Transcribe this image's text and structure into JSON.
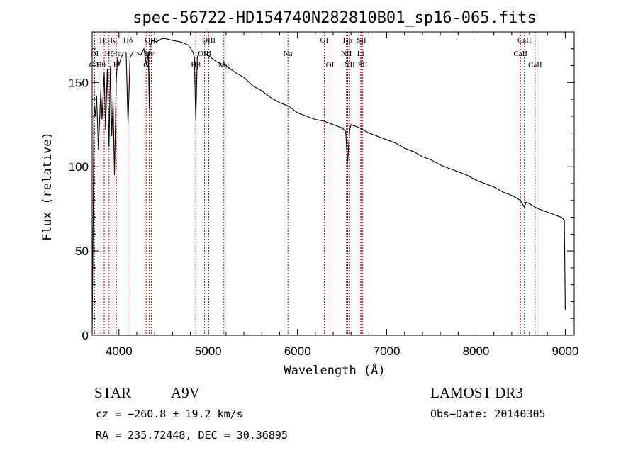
{
  "chart_data": {
    "type": "line",
    "title": "spec-56722-HD154740N282810B01_sp16-065.fits",
    "xlabel": "Wavelength (Å)",
    "ylabel": "Flux (relative)",
    "xlim": [
      3700,
      9100
    ],
    "ylim": [
      0,
      180
    ],
    "xticks": [
      4000,
      5000,
      6000,
      7000,
      8000,
      9000
    ],
    "yticks": [
      0,
      50,
      100,
      150
    ],
    "grid": false,
    "series": [
      {
        "name": "spectrum",
        "x": [
          3700,
          3710,
          3720,
          3735,
          3750,
          3770,
          3798,
          3810,
          3835,
          3850,
          3870,
          3889,
          3905,
          3920,
          3934,
          3950,
          3969,
          3985,
          4000,
          4020,
          4050,
          4080,
          4102,
          4125,
          4160,
          4200,
          4240,
          4280,
          4310,
          4330,
          4340,
          4350,
          4380,
          4420,
          4480,
          4520,
          4600,
          4700,
          4780,
          4830,
          4845,
          4861,
          4878,
          4900,
          4950,
          5000,
          5100,
          5200,
          5300,
          5400,
          5500,
          5600,
          5700,
          5800,
          5900,
          6000,
          6100,
          6200,
          6300,
          6400,
          6500,
          6540,
          6563,
          6585,
          6600,
          6700,
          6800,
          6900,
          7000,
          7100,
          7200,
          7300,
          7400,
          7500,
          7600,
          7700,
          7800,
          7900,
          8000,
          8100,
          8200,
          8300,
          8400,
          8500,
          8542,
          8560,
          8600,
          8662,
          8700,
          8800,
          8900,
          8960,
          8990,
          9000
        ],
        "y": [
          2,
          60,
          138,
          130,
          142,
          110,
          146,
          128,
          156,
          122,
          158,
          112,
          160,
          118,
          140,
          95,
          150,
          165,
          160,
          164,
          168,
          168,
          125,
          165,
          168,
          168,
          166,
          170,
          160,
          168,
          135,
          172,
          175,
          174,
          176,
          176,
          175,
          174,
          172,
          168,
          165,
          127,
          165,
          168,
          168,
          166,
          162,
          160,
          156,
          153,
          148,
          145,
          141,
          138,
          136,
          132,
          130,
          128,
          127,
          125,
          123,
          121,
          103,
          122,
          125,
          123,
          120,
          118,
          116,
          114,
          111,
          109,
          106,
          104,
          101,
          99,
          97,
          95,
          92,
          90,
          88,
          85,
          83,
          80,
          76,
          79,
          78,
          76,
          75,
          73,
          71,
          70,
          68,
          15
        ]
      }
    ],
    "line_marks": [
      {
        "label": "OII",
        "x": 3727,
        "row": 2
      },
      {
        "label": "H9",
        "x": 3835,
        "row": 0
      },
      {
        "label": "OI",
        "x": 3727,
        "row": 1
      },
      {
        "label": "Hε",
        "x": 3970,
        "row": 1
      },
      {
        "label": "Hζ",
        "x": 3889,
        "row": 1
      },
      {
        "label": "Hθ",
        "x": 3798,
        "row": 2
      },
      {
        "label": "K",
        "x": 3934,
        "row": 0
      },
      {
        "label": "H",
        "x": 3968,
        "row": 2
      },
      {
        "label": "Hδ",
        "x": 4102,
        "row": 0
      },
      {
        "label": "G",
        "x": 4305,
        "row": 2
      },
      {
        "label": "OIII",
        "x": 4363,
        "row": 0
      },
      {
        "label": "Hγ",
        "x": 4340,
        "row": 1
      },
      {
        "label": "Hβ",
        "x": 4861,
        "row": 2
      },
      {
        "label": "OIII",
        "x": 4959,
        "row": 1
      },
      {
        "label": "OIII",
        "x": 5007,
        "row": 0
      },
      {
        "label": "Mg",
        "x": 5175,
        "row": 2
      },
      {
        "label": "Na",
        "x": 5893,
        "row": 1
      },
      {
        "label": "OI",
        "x": 6300,
        "row": 0
      },
      {
        "label": "OI",
        "x": 6364,
        "row": 2
      },
      {
        "label": "Hα",
        "x": 6563,
        "row": 0
      },
      {
        "label": "NII",
        "x": 6548,
        "row": 1
      },
      {
        "label": "NII",
        "x": 6584,
        "row": 2
      },
      {
        "label": "SII",
        "x": 6717,
        "row": 0
      },
      {
        "label": "Li",
        "x": 6708,
        "row": 1
      },
      {
        "label": "SII",
        "x": 6731,
        "row": 2
      },
      {
        "label": "CaII",
        "x": 8542,
        "row": 0
      },
      {
        "label": "CaII",
        "x": 8498,
        "row": 1
      },
      {
        "label": "CaII",
        "x": 8662,
        "row": 2
      }
    ]
  },
  "info": {
    "object_type": "STAR",
    "subclass": "A9V",
    "survey": "LAMOST DR3",
    "cz": "cz = −260.8 ± 19.2 km/s",
    "obs_date": "Obs−Date: 20140305",
    "coords": "RA = 235.72448, DEC =  30.36895"
  }
}
